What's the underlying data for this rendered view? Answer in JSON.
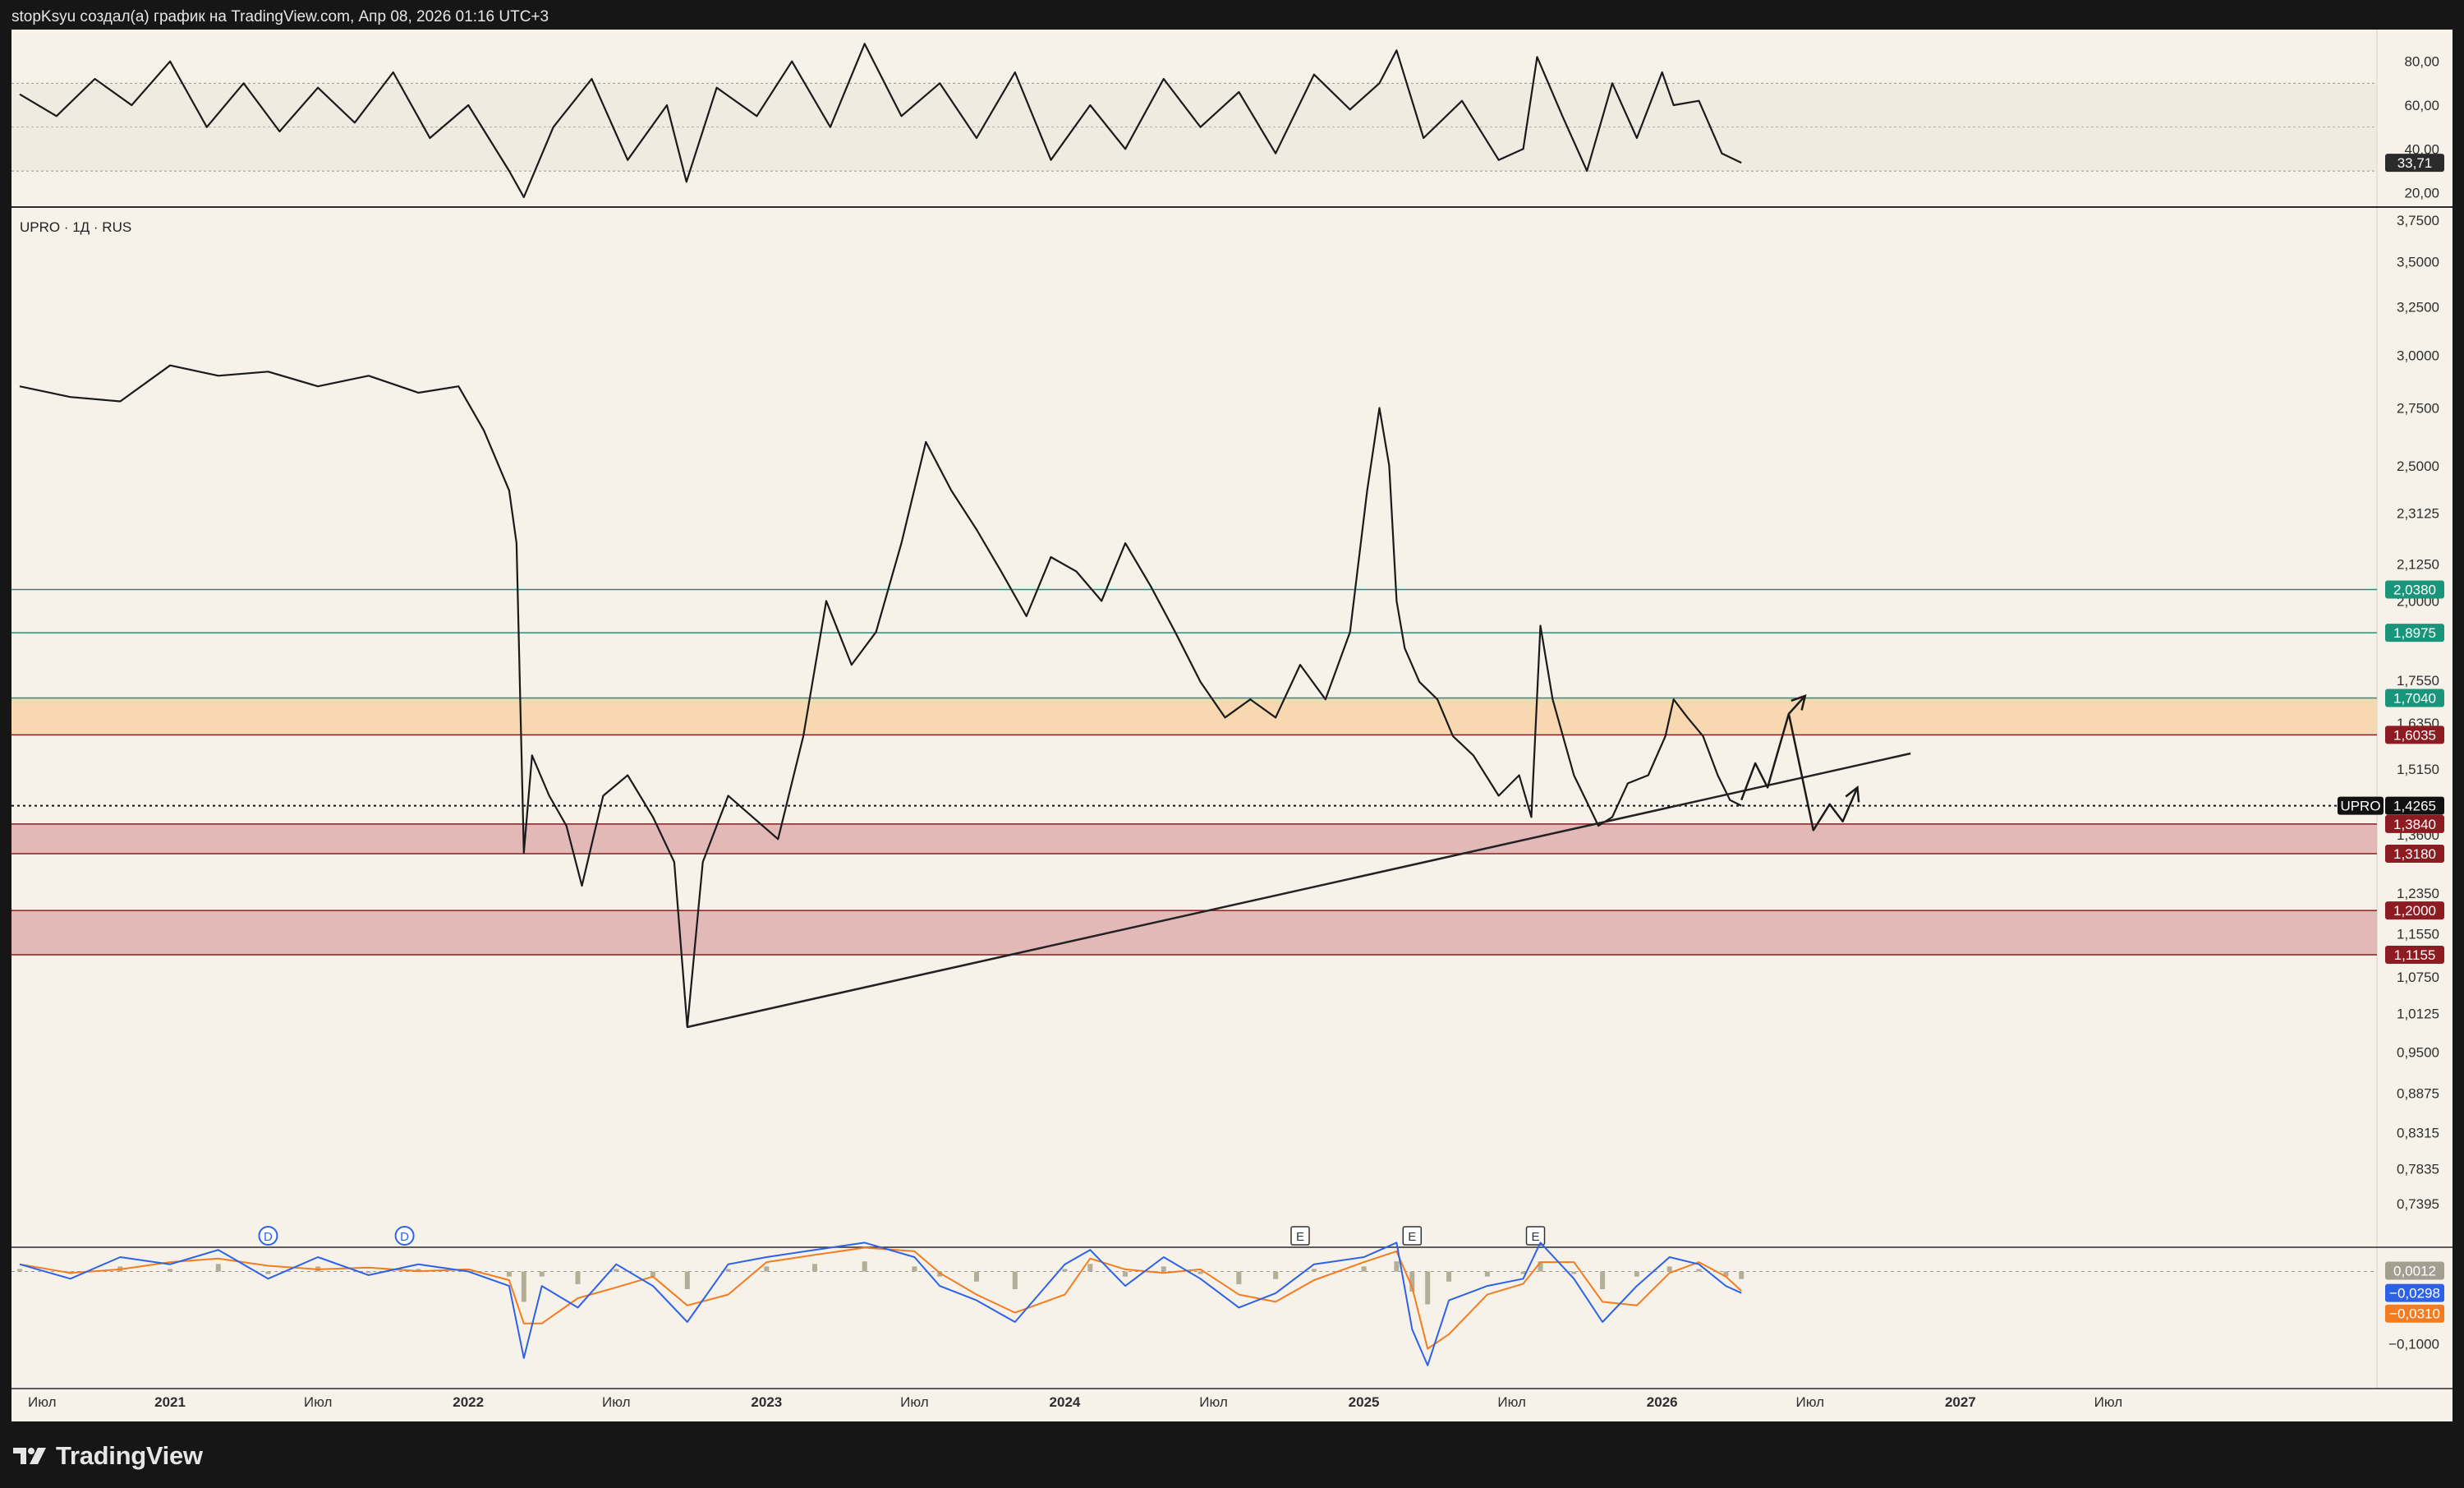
{
  "header": {
    "caption": "stopKsyu создал(а) график на TradingView.com, Апр 08, 2026 01:16 UTC+3"
  },
  "footer": {
    "brand": "TradingView"
  },
  "symbol": {
    "label": "UPRO · 1Д · RUS",
    "tag": "UPRO"
  },
  "colors": {
    "background": "#f6f2e9",
    "page": "#161616",
    "price_line": "#1a1a1a",
    "support_zone": "#dba5a5",
    "resistance_zone": "#f7cf9e",
    "green_level": "#19967a",
    "red_level": "#8c1c22",
    "macd_line": "#2d62e8",
    "signal_line": "#f47c20",
    "histogram": "#b4ad98"
  },
  "chart_data": [
    {
      "type": "line",
      "name": "rsi",
      "y_ticks": [
        "80,00",
        "60,00",
        "40,00",
        "20,00"
      ],
      "ylim": [
        15,
        93
      ],
      "guide_levels": [
        70,
        50,
        30
      ],
      "current_value": 33.71,
      "current_label": "33,71",
      "x": [
        "2020-07-01",
        "2020-08-15",
        "2020-10-01",
        "2020-11-15",
        "2021-01-01",
        "2021-02-15",
        "2021-04-01",
        "2021-05-15",
        "2021-07-01",
        "2021-08-15",
        "2021-10-01",
        "2021-11-15",
        "2022-01-01",
        "2022-02-20",
        "2022-03-10",
        "2022-04-15",
        "2022-06-01",
        "2022-07-15",
        "2022-09-01",
        "2022-09-25",
        "2022-11-01",
        "2022-12-20",
        "2023-02-01",
        "2023-03-20",
        "2023-05-01",
        "2023-06-15",
        "2023-08-01",
        "2023-09-15",
        "2023-11-01",
        "2023-12-15",
        "2024-02-01",
        "2024-03-15",
        "2024-05-01",
        "2024-06-15",
        "2024-08-01",
        "2024-09-15",
        "2024-11-01",
        "2024-12-15",
        "2025-01-20",
        "2025-02-10",
        "2025-03-15",
        "2025-05-01",
        "2025-06-15",
        "2025-07-15",
        "2025-08-01",
        "2025-09-01",
        "2025-10-01",
        "2025-11-01",
        "2025-12-01",
        "2026-01-01",
        "2026-01-15",
        "2026-02-15",
        "2026-03-15",
        "2026-04-08"
      ],
      "values": [
        65,
        55,
        72,
        60,
        80,
        50,
        70,
        48,
        68,
        52,
        75,
        45,
        60,
        30,
        18,
        50,
        72,
        35,
        60,
        25,
        68,
        55,
        80,
        50,
        88,
        55,
        70,
        45,
        75,
        35,
        60,
        40,
        72,
        50,
        66,
        38,
        74,
        58,
        70,
        85,
        45,
        62,
        35,
        40,
        82,
        55,
        30,
        70,
        45,
        75,
        60,
        62,
        38,
        33.71
      ]
    },
    {
      "type": "line",
      "name": "UPRO",
      "scale": "log",
      "x_ticks": [
        "Июл",
        "2021",
        "Июл",
        "2022",
        "Июл",
        "2023",
        "Июл",
        "2024",
        "Июл",
        "2025",
        "Июл",
        "2026",
        "Июл",
        "2027",
        "Июл"
      ],
      "y_ticks": [
        "3,7500",
        "3,5000",
        "3,2500",
        "3,0000",
        "2,7500",
        "2,5000",
        "2,3125",
        "2,1250",
        "2,0000",
        "1,7550",
        "1,6350",
        "1,5150",
        "1,3600",
        "1,2350",
        "1,1550",
        "1,0750",
        "1,0125",
        "0,9500",
        "0,8875",
        "0,8315",
        "0,7835",
        "0,7395"
      ],
      "ylim": [
        0.715,
        3.8
      ],
      "x": [
        "2020-07-01",
        "2020-09-01",
        "2020-11-01",
        "2021-01-01",
        "2021-03-01",
        "2021-05-01",
        "2021-07-01",
        "2021-09-01",
        "2021-11-01",
        "2021-12-20",
        "2022-01-20",
        "2022-02-20",
        "2022-03-01",
        "2022-03-10",
        "2022-03-20",
        "2022-04-10",
        "2022-05-01",
        "2022-05-20",
        "2022-06-15",
        "2022-07-15",
        "2022-08-15",
        "2022-09-10",
        "2022-09-26",
        "2022-10-15",
        "2022-11-15",
        "2022-12-15",
        "2023-01-15",
        "2023-02-15",
        "2023-03-15",
        "2023-04-15",
        "2023-05-15",
        "2023-06-15",
        "2023-07-15",
        "2023-08-15",
        "2023-09-15",
        "2023-10-15",
        "2023-11-15",
        "2023-12-15",
        "2024-01-15",
        "2024-02-15",
        "2024-03-15",
        "2024-04-15",
        "2024-05-15",
        "2024-06-15",
        "2024-07-15",
        "2024-08-15",
        "2024-09-15",
        "2024-10-15",
        "2024-11-15",
        "2024-12-15",
        "2025-01-05",
        "2025-01-20",
        "2025-02-01",
        "2025-02-10",
        "2025-02-20",
        "2025-03-10",
        "2025-04-01",
        "2025-04-20",
        "2025-05-15",
        "2025-06-15",
        "2025-07-10",
        "2025-07-25",
        "2025-08-05",
        "2025-08-20",
        "2025-09-15",
        "2025-10-15",
        "2025-11-01",
        "2025-11-20",
        "2025-12-15",
        "2026-01-05",
        "2026-01-15",
        "2026-02-01",
        "2026-02-20",
        "2026-03-10",
        "2026-03-25",
        "2026-04-08"
      ],
      "values": [
        2.85,
        2.8,
        2.78,
        2.95,
        2.9,
        2.92,
        2.85,
        2.9,
        2.82,
        2.85,
        2.65,
        2.4,
        2.2,
        1.32,
        1.55,
        1.45,
        1.38,
        1.25,
        1.45,
        1.5,
        1.4,
        1.3,
        0.99,
        1.3,
        1.45,
        1.4,
        1.35,
        1.6,
        2.0,
        1.8,
        1.9,
        2.2,
        2.6,
        2.4,
        2.25,
        2.1,
        1.95,
        2.15,
        2.1,
        2.0,
        2.2,
        2.05,
        1.9,
        1.75,
        1.65,
        1.7,
        1.65,
        1.8,
        1.7,
        1.9,
        2.4,
        2.75,
        2.5,
        2.0,
        1.85,
        1.75,
        1.7,
        1.6,
        1.55,
        1.45,
        1.5,
        1.4,
        1.92,
        1.7,
        1.5,
        1.38,
        1.4,
        1.48,
        1.5,
        1.6,
        1.7,
        1.65,
        1.6,
        1.5,
        1.44,
        1.4265
      ],
      "last_price_label": "1,4265",
      "levels": [
        {
          "value": 2.038,
          "label": "2,0380",
          "kind": "green"
        },
        {
          "value": 1.8975,
          "label": "1,8975",
          "kind": "green"
        },
        {
          "value": 1.704,
          "label": "1,7040",
          "kind": "green"
        },
        {
          "value": 1.6035,
          "label": "1,6035",
          "kind": "red"
        },
        {
          "value": 1.384,
          "label": "1,3840",
          "kind": "red"
        },
        {
          "value": 1.318,
          "label": "1,3180",
          "kind": "red"
        },
        {
          "value": 1.2,
          "label": "1,2000",
          "kind": "red"
        },
        {
          "value": 1.1155,
          "label": "1,1155",
          "kind": "red"
        }
      ],
      "zones": [
        {
          "from": 1.6035,
          "to": 1.704,
          "kind": "resistance"
        },
        {
          "from": 1.318,
          "to": 1.384,
          "kind": "support"
        },
        {
          "from": 1.1155,
          "to": 1.2,
          "kind": "support"
        }
      ],
      "trendline": [
        {
          "x": "2022-09-26",
          "y": 0.99
        },
        {
          "x": "2026-11-01",
          "y": 1.555
        }
      ],
      "projection_up": [
        {
          "x": "2026-04-08",
          "y": 1.44
        },
        {
          "x": "2026-04-25",
          "y": 1.53
        },
        {
          "x": "2026-05-10",
          "y": 1.47
        },
        {
          "x": "2026-06-05",
          "y": 1.66
        },
        {
          "x": "2026-06-25",
          "y": 1.71
        }
      ],
      "projection_down": [
        {
          "x": "2026-06-05",
          "y": 1.66
        },
        {
          "x": "2026-07-05",
          "y": 1.37
        },
        {
          "x": "2026-07-25",
          "y": 1.43
        },
        {
          "x": "2026-08-10",
          "y": 1.39
        },
        {
          "x": "2026-08-28",
          "y": 1.47
        }
      ],
      "events": [
        {
          "x": "2021-05-01",
          "label": "D"
        },
        {
          "x": "2021-10-15",
          "label": "D"
        },
        {
          "x": "2024-10-15",
          "label": "E"
        },
        {
          "x": "2025-03-01",
          "label": "E"
        },
        {
          "x": "2025-07-30",
          "label": "E"
        }
      ]
    },
    {
      "type": "line",
      "name": "macd",
      "y_ticks": [
        "−0,1000"
      ],
      "ylim": [
        -0.16,
        0.045
      ],
      "x": [
        "2020-07-01",
        "2020-09-01",
        "2020-11-01",
        "2021-01-01",
        "2021-03-01",
        "2021-05-01",
        "2021-07-01",
        "2021-09-01",
        "2021-11-01",
        "2022-01-01",
        "2022-02-20",
        "2022-03-10",
        "2022-04-01",
        "2022-05-15",
        "2022-07-01",
        "2022-08-15",
        "2022-09-26",
        "2022-11-15",
        "2023-01-01",
        "2023-03-01",
        "2023-05-01",
        "2023-07-01",
        "2023-08-01",
        "2023-09-15",
        "2023-11-01",
        "2024-01-01",
        "2024-02-01",
        "2024-03-15",
        "2024-05-01",
        "2024-06-15",
        "2024-08-01",
        "2024-09-15",
        "2024-11-01",
        "2025-01-01",
        "2025-02-10",
        "2025-03-01",
        "2025-03-20",
        "2025-04-15",
        "2025-06-01",
        "2025-07-15",
        "2025-08-05",
        "2025-09-15",
        "2025-10-20",
        "2025-12-01",
        "2026-01-10",
        "2026-02-15",
        "2026-03-20",
        "2026-04-08"
      ],
      "values": [
        0.01,
        -0.01,
        0.02,
        0.01,
        0.03,
        -0.01,
        0.02,
        -0.005,
        0.01,
        0.0,
        -0.02,
        -0.12,
        -0.02,
        -0.05,
        0.01,
        -0.02,
        -0.07,
        0.01,
        0.02,
        0.03,
        0.04,
        0.02,
        -0.02,
        -0.04,
        -0.07,
        0.01,
        0.03,
        -0.02,
        0.02,
        -0.01,
        -0.05,
        -0.03,
        0.01,
        0.02,
        0.04,
        -0.08,
        -0.13,
        -0.04,
        -0.02,
        -0.01,
        0.04,
        -0.01,
        -0.07,
        -0.02,
        0.02,
        0.01,
        -0.02,
        -0.0298
      ],
      "histogram_label": "0,0012",
      "macd_label": "−0,0298",
      "signal_label": "−0,0310",
      "macd_value": -0.0298,
      "signal_value": -0.031
    }
  ]
}
